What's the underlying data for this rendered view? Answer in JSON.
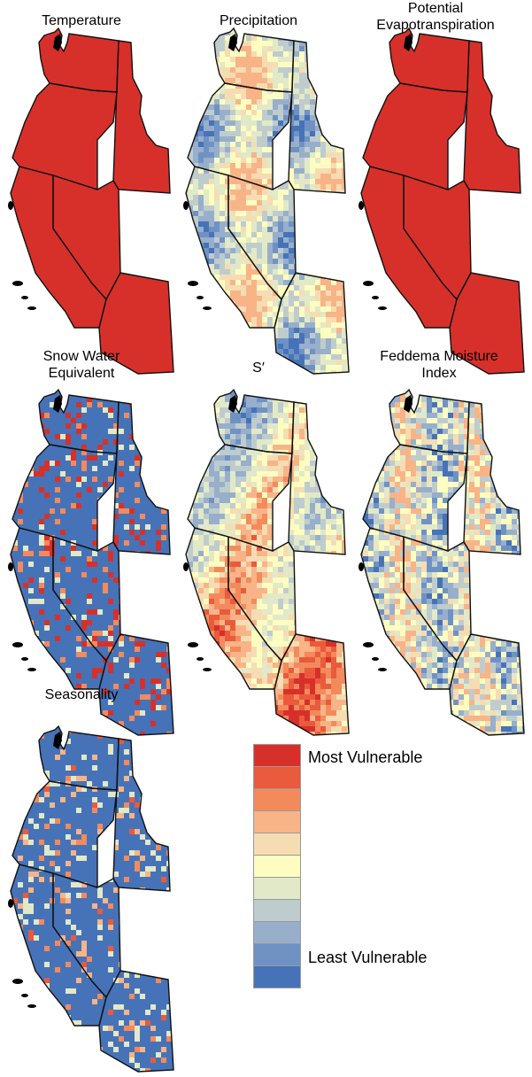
{
  "panels": [
    {
      "title": "Temperature",
      "scheme": "uniform-most"
    },
    {
      "title": "Precipitation",
      "scheme": "precip"
    },
    {
      "title": "Potential\nEvapotranspiration",
      "scheme": "uniform-most"
    },
    {
      "title": "Snow Water\nEquivalent",
      "scheme": "swe"
    },
    {
      "title": "S′",
      "scheme": "sprime"
    },
    {
      "title": "Feddema Moisture\nIndex",
      "scheme": "feddema"
    },
    {
      "title": "Seasonality",
      "scheme": "season"
    }
  ],
  "legend": {
    "most_label": "Most Vulnerable",
    "least_label": "Least Vulnerable",
    "colors": [
      "#d7302a",
      "#ea5a3c",
      "#f38a5c",
      "#f8b487",
      "#f6dcb3",
      "#fefdc1",
      "#e1e9c8",
      "#bfccce",
      "#97afcb",
      "#6f92c5",
      "#4673b8"
    ]
  },
  "colors": {
    "border": "#111111",
    "island": "#000000"
  }
}
